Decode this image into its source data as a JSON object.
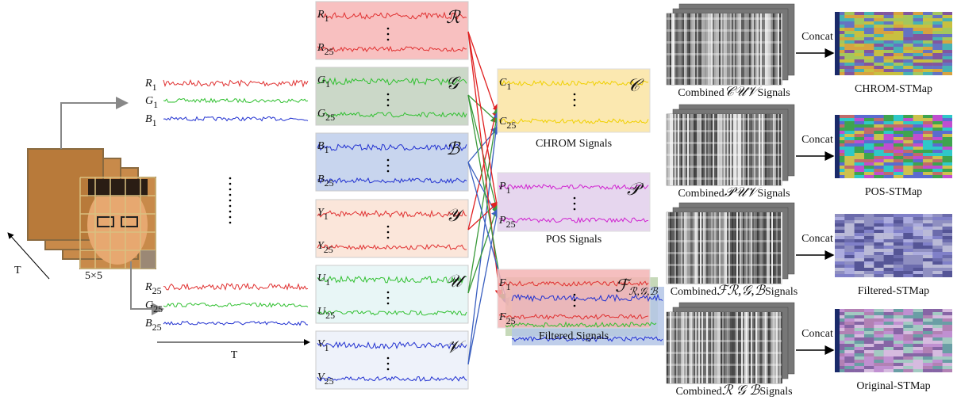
{
  "face": {
    "grid_label": "5×5",
    "time_label": "T"
  },
  "time_axis_label": "T",
  "raw_signals": [
    {
      "letter": "R",
      "index": "1"
    },
    {
      "letter": "G",
      "index": "1"
    },
    {
      "letter": "B",
      "index": "1"
    },
    {
      "letter": "R",
      "index": "25"
    },
    {
      "letter": "G",
      "index": "25"
    },
    {
      "letter": "B",
      "index": "25"
    }
  ],
  "channel_boxes": [
    {
      "symbol": "ℛ",
      "top": {
        "letter": "R",
        "index": "1"
      },
      "bottom": {
        "letter": "R",
        "index": "25"
      }
    },
    {
      "symbol": "𝒢",
      "top": {
        "letter": "G",
        "index": "1"
      },
      "bottom": {
        "letter": "G",
        "index": "25"
      }
    },
    {
      "symbol": "ℬ",
      "top": {
        "letter": "B",
        "index": "1"
      },
      "bottom": {
        "letter": "B",
        "index": "25"
      }
    },
    {
      "symbol": "𝒴",
      "top": {
        "letter": "Y",
        "index": "1"
      },
      "bottom": {
        "letter": "Y",
        "index": "25"
      }
    },
    {
      "symbol": "𝒰",
      "top": {
        "letter": "U",
        "index": "1"
      },
      "bottom": {
        "letter": "U",
        "index": "25"
      }
    },
    {
      "symbol": "𝒱",
      "top": {
        "letter": "V",
        "index": "1"
      },
      "bottom": {
        "letter": "V",
        "index": "25"
      }
    }
  ],
  "combined_boxes": [
    {
      "symbol": "𝒞",
      "top": {
        "letter": "C",
        "index": "1"
      },
      "bottom": {
        "letter": "C",
        "index": "25"
      },
      "caption": "CHROM Signals"
    },
    {
      "symbol": "𝒫",
      "top": {
        "letter": "P",
        "index": "1"
      },
      "bottom": {
        "letter": "P",
        "index": "25"
      },
      "caption": "POS Signals"
    },
    {
      "symbol": "ℱ",
      "symbol_sub": "ℛ,𝒢,ℬ",
      "top": {
        "letter": "F",
        "index": "1"
      },
      "bottom": {
        "letter": "F",
        "index": "25"
      },
      "caption": "Filtered Signals"
    }
  ],
  "stmaps": [
    {
      "combined_prefix": "Combined",
      "combined_symbols": "𝒞𝒰𝒱",
      "combined_suffix": "Signals",
      "concat": "Concat",
      "caption": "CHROM-STMap"
    },
    {
      "combined_prefix": "Combined",
      "combined_symbols": "𝒫𝒰𝒱",
      "combined_suffix": "Signals",
      "concat": "Concat",
      "caption": "POS-STMap"
    },
    {
      "combined_prefix": "Combined",
      "combined_symbols": "ℱℛ,𝒢,ℬ",
      "combined_suffix": "Signals",
      "concat": "Concat",
      "caption": "Filtered-STMap"
    },
    {
      "combined_prefix": "Combined",
      "combined_symbols": "ℛ 𝒢 ℬ",
      "combined_suffix": "Signals",
      "concat": "Concat",
      "caption": "Original-STMap"
    }
  ]
}
